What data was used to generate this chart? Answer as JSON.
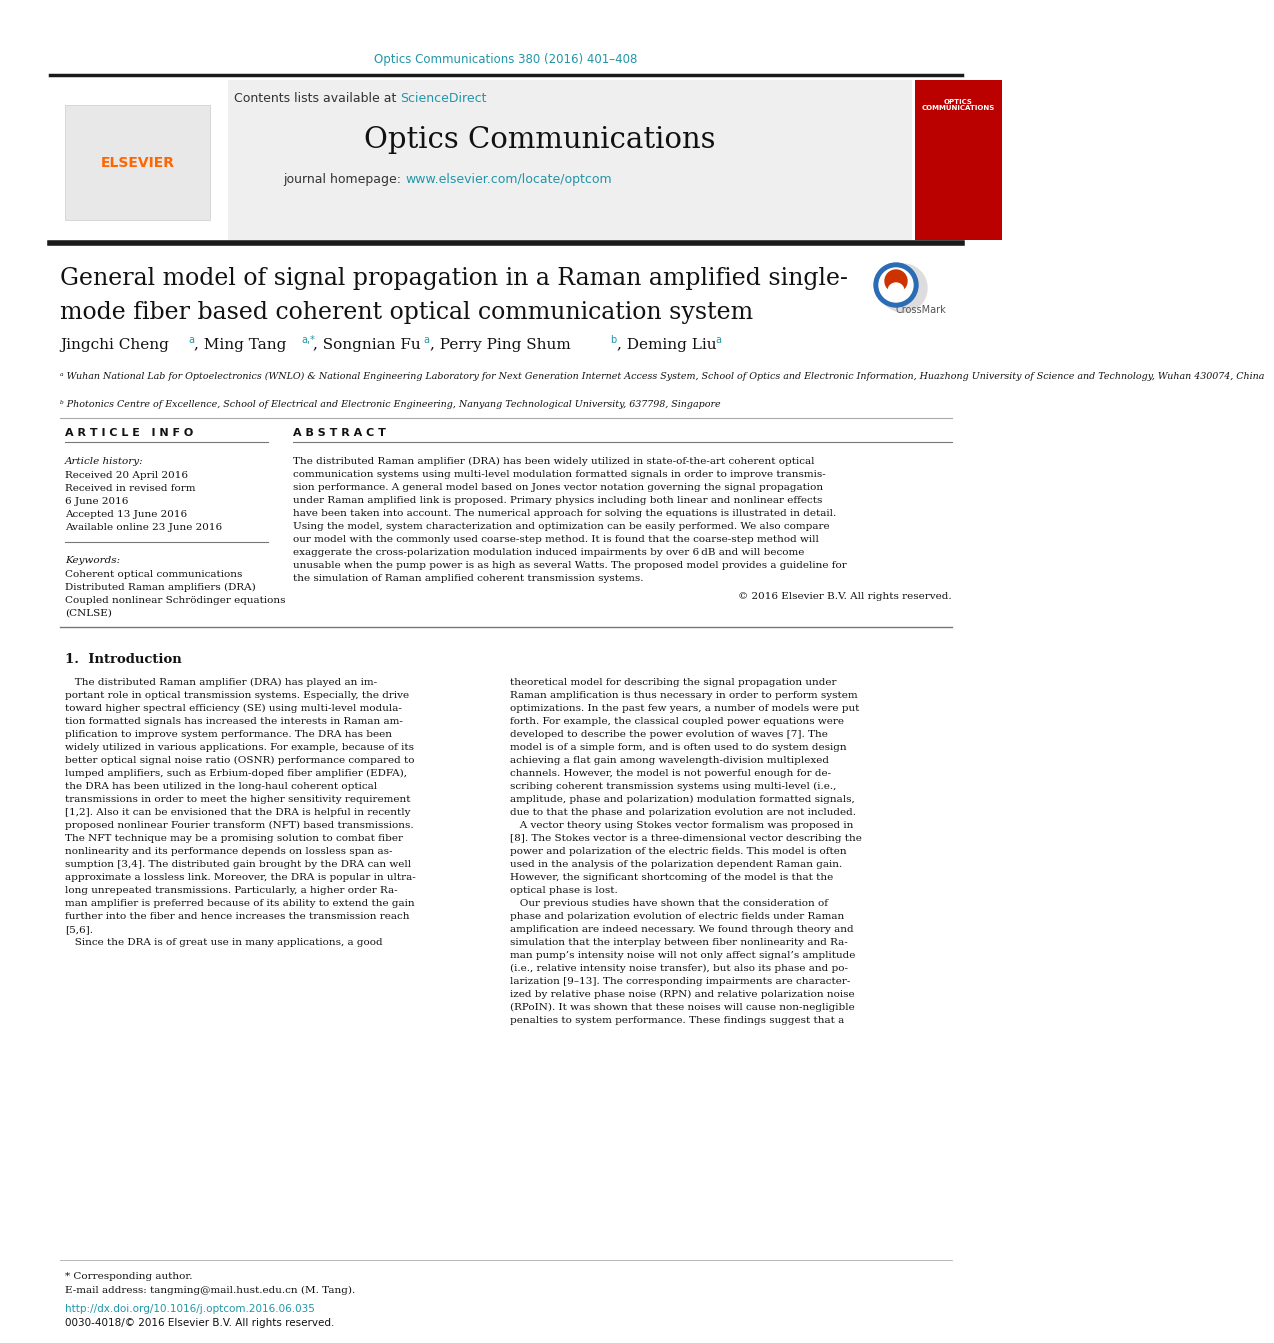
{
  "journal_ref": "Optics Communications 380 (2016) 401–408",
  "header_sciencedirect": "ScienceDirect",
  "header_journal": "Optics Communications",
  "header_url": "www.elsevier.com/locate/optcom",
  "paper_title_line1": "General model of signal propagation in a Raman amplified single-",
  "paper_title_line2": "mode fiber based coherent optical communication system",
  "affil_a": "ᵃ Wuhan National Lab for Optoelectronics (WNLO) & National Engineering Laboratory for Next Generation Internet Access System, School of Optics and Electronic Information, Huazhong University of Science and Technology, Wuhan 430074, China",
  "affil_b": "ᵇ Photonics Centre of Excellence, School of Electrical and Electronic Engineering, Nanyang Technological University, 637798, Singapore",
  "article_info_title": "A R T I C L E   I N F O",
  "abstract_title": "A B S T R A C T",
  "abstract_rights": "© 2016 Elsevier B.V. All rights reserved.",
  "intro_title": "1.  Introduction",
  "footer_text1": "* Corresponding author.",
  "footer_text2": "E-mail address: tangming@mail.hust.edu.cn (M. Tang).",
  "footer_doi": "http://dx.doi.org/10.1016/j.optcom.2016.06.035",
  "footer_rights": "0030-4018/© 2016 Elsevier B.V. All rights reserved.",
  "bg_color": "#ffffff",
  "header_bg": "#efefef",
  "link_color": "#2196a8",
  "abstract_lines": [
    "The distributed Raman amplifier (DRA) has been widely utilized in state-of-the-art coherent optical",
    "communication systems using multi-level modulation formatted signals in order to improve transmis-",
    "sion performance. A general model based on Jones vector notation governing the signal propagation",
    "under Raman amplified link is proposed. Primary physics including both linear and nonlinear effects",
    "have been taken into account. The numerical approach for solving the equations is illustrated in detail.",
    "Using the model, system characterization and optimization can be easily performed. We also compare",
    "our model with the commonly used coarse-step method. It is found that the coarse-step method will",
    "exaggerate the cross-polarization modulation induced impairments by over 6 dB and will become",
    "unusable when the pump power is as high as several Watts. The proposed model provides a guideline for",
    "the simulation of Raman amplified coherent transmission systems."
  ],
  "intro_col1_lines": [
    "   The distributed Raman amplifier (DRA) has played an im-",
    "portant role in optical transmission systems. Especially, the drive",
    "toward higher spectral efficiency (SE) using multi-level modula-",
    "tion formatted signals has increased the interests in Raman am-",
    "plification to improve system performance. The DRA has been",
    "widely utilized in various applications. For example, because of its",
    "better optical signal noise ratio (OSNR) performance compared to",
    "lumped amplifiers, such as Erbium-doped fiber amplifier (EDFA),",
    "the DRA has been utilized in the long-haul coherent optical",
    "transmissions in order to meet the higher sensitivity requirement",
    "[1,2]. Also it can be envisioned that the DRA is helpful in recently",
    "proposed nonlinear Fourier transform (NFT) based transmissions.",
    "The NFT technique may be a promising solution to combat fiber",
    "nonlinearity and its performance depends on lossless span as-",
    "sumption [3,4]. The distributed gain brought by the DRA can well",
    "approximate a lossless link. Moreover, the DRA is popular in ultra-",
    "long unrepeated transmissions. Particularly, a higher order Ra-",
    "man amplifier is preferred because of its ability to extend the gain",
    "further into the fiber and hence increases the transmission reach",
    "[5,6].",
    "   Since the DRA is of great use in many applications, a good"
  ],
  "intro_col2_lines": [
    "theoretical model for describing the signal propagation under",
    "Raman amplification is thus necessary in order to perform system",
    "optimizations. In the past few years, a number of models were put",
    "forth. For example, the classical coupled power equations were",
    "developed to describe the power evolution of waves [7]. The",
    "model is of a simple form, and is often used to do system design",
    "achieving a flat gain among wavelength-division multiplexed",
    "channels. However, the model is not powerful enough for de-",
    "scribing coherent transmission systems using multi-level (i.e.,",
    "amplitude, phase and polarization) modulation formatted signals,",
    "due to that the phase and polarization evolution are not included.",
    "   A vector theory using Stokes vector formalism was proposed in",
    "[8]. The Stokes vector is a three-dimensional vector describing the",
    "power and polarization of the electric fields. This model is often",
    "used in the analysis of the polarization dependent Raman gain.",
    "However, the significant shortcoming of the model is that the",
    "optical phase is lost.",
    "   Our previous studies have shown that the consideration of",
    "phase and polarization evolution of electric fields under Raman",
    "amplification are indeed necessary. We found through theory and",
    "simulation that the interplay between fiber nonlinearity and Ra-",
    "man pump’s intensity noise will not only affect signal’s amplitude",
    "(i.e., relative intensity noise transfer), but also its phase and po-",
    "larization [9–13]. The corresponding impairments are character-",
    "ized by relative phase noise (RPN) and relative polarization noise",
    "(RPoIN). It was shown that these noises will cause non-negligible",
    "penalties to system performance. These findings suggest that a"
  ]
}
